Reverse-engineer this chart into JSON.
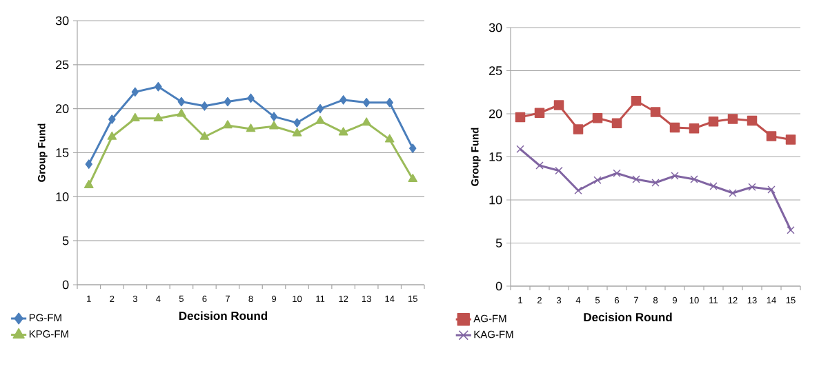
{
  "chart_data": [
    {
      "type": "line",
      "xlabel": "Decision Round",
      "ylabel": "Group Fund",
      "categories": [
        "1",
        "2",
        "3",
        "4",
        "5",
        "6",
        "7",
        "8",
        "9",
        "10",
        "11",
        "12",
        "13",
        "14",
        "15"
      ],
      "series": [
        {
          "name": "PG-FM",
          "color": "#4a7ebb",
          "marker": "diamond",
          "values": [
            13.7,
            18.8,
            21.9,
            22.5,
            20.8,
            20.3,
            20.8,
            21.2,
            19.1,
            18.4,
            20.0,
            21.0,
            20.7,
            20.7,
            15.5
          ]
        },
        {
          "name": "KPG-FM",
          "color": "#9bbb59",
          "marker": "triangle",
          "values": [
            11.3,
            16.8,
            18.9,
            18.9,
            19.4,
            16.8,
            18.1,
            17.7,
            18.0,
            17.2,
            18.6,
            17.3,
            18.4,
            16.5,
            12.0
          ]
        }
      ],
      "ylim": [
        0,
        30
      ],
      "yticks": [
        0,
        5,
        10,
        15,
        20,
        25,
        30
      ],
      "grid": "y",
      "legend": "bottom left",
      "line_style": "solid"
    },
    {
      "type": "line",
      "xlabel": "Decision Round",
      "ylabel": "Group Fund",
      "categories": [
        "1",
        "2",
        "3",
        "4",
        "5",
        "6",
        "7",
        "8",
        "9",
        "10",
        "11",
        "12",
        "13",
        "14",
        "15"
      ],
      "series": [
        {
          "name": "AG-FM",
          "color": "#c0504d",
          "marker": "square",
          "values": [
            19.6,
            20.1,
            21.0,
            18.2,
            19.5,
            18.9,
            21.5,
            20.2,
            18.4,
            18.3,
            19.1,
            19.4,
            19.2,
            17.4,
            17.0
          ]
        },
        {
          "name": "KAG-FM",
          "color": "#8064a2",
          "marker": "cross",
          "values": [
            15.9,
            14.0,
            13.4,
            11.1,
            12.3,
            13.1,
            12.4,
            12.0,
            12.8,
            12.4,
            11.6,
            10.8,
            11.5,
            11.2,
            6.5
          ]
        }
      ],
      "ylim": [
        0,
        30
      ],
      "yticks": [
        0,
        5,
        10,
        15,
        20,
        25,
        30
      ],
      "grid": "y",
      "legend": "bottom left",
      "line_style": "solid"
    }
  ]
}
